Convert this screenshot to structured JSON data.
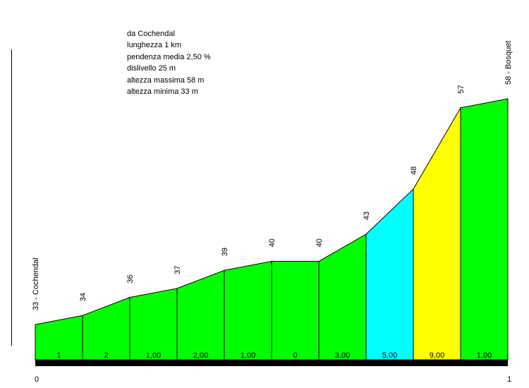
{
  "info_lines": [
    "da Cochendal",
    "lunghezza 1 km",
    "pendenza media 2,50 %",
    "dislivello 25 m",
    "altezza massima 58 m",
    "altezza minima 33 m"
  ],
  "chart_data": {
    "type": "area",
    "title": "",
    "xlabel": "",
    "ylabel": "",
    "x_ticks": [
      "0",
      "1"
    ],
    "elevation_points": [
      {
        "x": 0.0,
        "y": 33,
        "label": "33 - Cochendal"
      },
      {
        "x": 0.1,
        "y": 34,
        "label": "34"
      },
      {
        "x": 0.2,
        "y": 36,
        "label": "36"
      },
      {
        "x": 0.3,
        "y": 37,
        "label": "37"
      },
      {
        "x": 0.4,
        "y": 39,
        "label": "39"
      },
      {
        "x": 0.5,
        "y": 40,
        "label": "40"
      },
      {
        "x": 0.6,
        "y": 40,
        "label": "40"
      },
      {
        "x": 0.7,
        "y": 43,
        "label": "43"
      },
      {
        "x": 0.8,
        "y": 48,
        "label": "48"
      },
      {
        "x": 0.9,
        "y": 57,
        "label": "57"
      },
      {
        "x": 1.0,
        "y": 58,
        "label": "58 - Bosquet"
      }
    ],
    "segments": [
      {
        "gradient_label": "1",
        "color": "#00ff00"
      },
      {
        "gradient_label": "2",
        "color": "#00ff00"
      },
      {
        "gradient_label": "1,00",
        "color": "#00ff00"
      },
      {
        "gradient_label": "2,00",
        "color": "#00ff00"
      },
      {
        "gradient_label": "1,00",
        "color": "#00ff00"
      },
      {
        "gradient_label": "0",
        "color": "#00ff00"
      },
      {
        "gradient_label": "3,00",
        "color": "#00ff00"
      },
      {
        "gradient_label": "5,00",
        "color": "#00ffff"
      },
      {
        "gradient_label": "9,00",
        "color": "#ffff00"
      },
      {
        "gradient_label": "1,00",
        "color": "#00ff00"
      }
    ],
    "grid": false,
    "legend": "none"
  }
}
